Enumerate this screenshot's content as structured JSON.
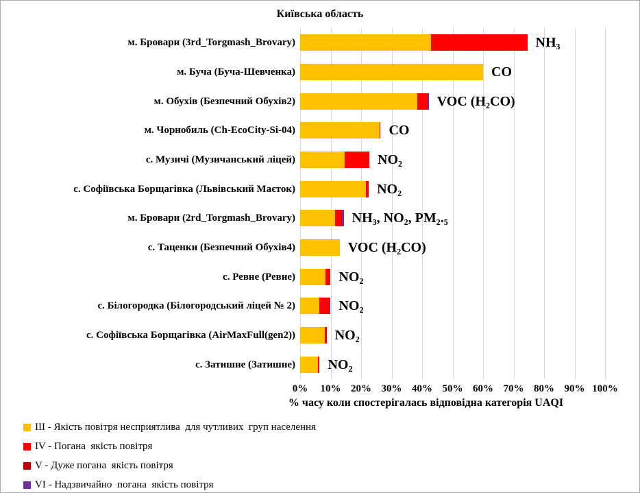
{
  "title": "Київська область",
  "colors": {
    "III": "#FFC000",
    "IV": "#FF0000",
    "V": "#C00000",
    "VI": "#7030A0",
    "gridline": "#D9D9D9"
  },
  "chart_data": {
    "type": "bar",
    "orientation": "horizontal",
    "stacked": true,
    "title": "Київська область",
    "xlabel": "% часу коли спостерігалась відповідна категорія UAQI",
    "xlim": [
      0,
      100
    ],
    "x_ticks": [
      "0%",
      "10%",
      "20%",
      "30%",
      "40%",
      "50%",
      "60%",
      "70%",
      "80%",
      "90%",
      "100%"
    ],
    "grid": true,
    "legend_position": "bottom-left",
    "categories": [
      "м. Бровари (3rd_Torgmash_Brovary)",
      "м. Буча (Буча-Шевченка)",
      "м. Обухів (Безпечний Обухів2)",
      "м. Чорнобиль (Ch-EcoCity-Si-04)",
      "с. Музичі (Музичанський ліцей)",
      "с. Софіївська Борщагівка (Львівський Маєток)",
      "м. Бровари (2rd_Torgmash_Brovary)",
      "с. Таценки (Безпечний Обухів4)",
      "с. Ревне (Ревне)",
      "с. Білогородка (Білогородський ліцей № 2)",
      "с. Софіївська Борщагівка (AirMaxFull(gen2))",
      "с. Затишне (Затишне)"
    ],
    "series": [
      {
        "name": "III",
        "color": "#FFC000",
        "values": [
          43,
          60,
          38.5,
          26,
          14.6,
          21.5,
          11.5,
          13,
          8.4,
          6.3,
          8,
          5.9
        ]
      },
      {
        "name": "IV",
        "color": "#FF0000",
        "values": [
          31.5,
          0,
          3.2,
          0.4,
          8.1,
          1,
          2.3,
          0,
          1.6,
          3.3,
          0.7,
          0.5
        ]
      },
      {
        "name": "V",
        "color": "#C00000",
        "values": [
          0,
          0,
          0,
          0,
          0,
          0,
          0,
          0,
          0,
          0,
          0,
          0
        ]
      },
      {
        "name": "VI",
        "color": "#7030A0",
        "values": [
          0,
          0,
          0.5,
          0,
          0,
          0,
          0.5,
          0,
          0,
          0.4,
          0,
          0
        ]
      }
    ],
    "annotations": [
      "NH₃",
      "CO",
      "VOC (H₂CO)",
      "CO",
      "NO₂",
      "NO₂",
      "NH₃, NO₂, PM₂.₅",
      "VOC (H₂CO)",
      "NO₂",
      "NO₂",
      "NO₂",
      "NO₂"
    ]
  },
  "axis": {
    "label": "% часу коли спостерігалась відповідна категорія UAQI"
  },
  "legend": {
    "items": [
      {
        "key": "III",
        "color": "#FFC000",
        "label": "III - Якість повітря несприятлива  для чутливих  груп населення"
      },
      {
        "key": "IV",
        "color": "#FF0000",
        "label": "IV - Погана  якість повітря"
      },
      {
        "key": "V",
        "color": "#C00000",
        "label": "V - Дуже погана  якість повітря"
      },
      {
        "key": "VI",
        "color": "#7030A0",
        "label": "VI - Надзвичайно  погана  якість повітря"
      }
    ]
  }
}
